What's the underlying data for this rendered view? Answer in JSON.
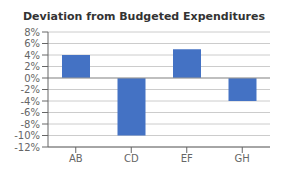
{
  "chart_data": {
    "type": "bar",
    "title": "Deviation from Budgeted Expenditures",
    "categories": [
      "AB",
      "CD",
      "EF",
      "GH"
    ],
    "values": [
      4,
      -10,
      5,
      -4
    ],
    "color": "#4472C4",
    "ylim": [
      -12,
      8
    ],
    "yticks": [
      {
        "value": -12,
        "label": "-12%"
      },
      {
        "value": -10,
        "label": "-10%"
      },
      {
        "value": -8,
        "label": "-8%"
      },
      {
        "value": -6,
        "label": "-6%"
      },
      {
        "value": -4,
        "label": "-4%"
      },
      {
        "value": -2,
        "label": "-2%"
      },
      {
        "value": 0,
        "label": "0%"
      },
      {
        "value": 2,
        "label": "2%"
      },
      {
        "value": 4,
        "label": "4%"
      },
      {
        "value": 6,
        "label": "6%"
      },
      {
        "value": 8,
        "label": "8%"
      }
    ],
    "grid": true
  }
}
